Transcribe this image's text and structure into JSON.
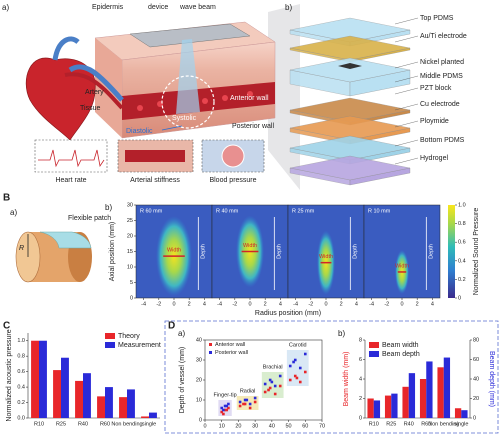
{
  "figure_A": {
    "label_a": "a)",
    "epidermis": "Epidermis",
    "device": "device",
    "wave_beam": "wave beam",
    "artery": "Artery",
    "tissue": "Tissue",
    "diastolic": "Diastolic",
    "systolic": "Systolic",
    "anterior_wall": "Anterior wall",
    "posterior_wall": "Posterior wall",
    "heart_rate": "Heart rate",
    "arterial_stiffness": "Arterial stiffness",
    "blood_pressure": "Blood pressure",
    "label_b": "b)",
    "layers": [
      "Top PDMS",
      "Au/Ti electrode",
      "Nickel planted",
      "Middle PDMS",
      "PZT block",
      "Cu electrode",
      "Ploymide",
      "Bottom PDMS",
      "Hydrogel"
    ]
  },
  "figure_B": {
    "panel_label": "B",
    "label_a": "a)",
    "flexible_patch": "Flexible patch",
    "radius_symbol": "R",
    "label_b": "b)"
  },
  "figure_C": {
    "panel_label": "C"
  },
  "figure_D": {
    "panel_label": "D",
    "label_a": "a)",
    "label_b": "b)"
  },
  "chart_data": [
    {
      "type": "heatmap",
      "panels": [
        "R 60 mm",
        "R 40 mm",
        "R 25 mm",
        "R 10 mm"
      ],
      "width_label": "Width",
      "depth_label": "Depth",
      "x_label": "Radius position (mm)",
      "y_label": "Axial position (mm)",
      "xlim": [
        -5,
        5
      ],
      "xticks": [
        -4,
        -2,
        0,
        2,
        4
      ],
      "ylim": [
        0,
        30
      ],
      "yticks": [
        0,
        5,
        10,
        15,
        20,
        25,
        30
      ],
      "colorbar_label": "Normalized Sound Pressure",
      "colorbar_lim": [
        0,
        1
      ],
      "colorbar_ticks": [
        0,
        0.2,
        0.4,
        0.6,
        0.8,
        {
          "value": 1,
          "label": "1.0"
        }
      ]
    },
    {
      "type": "bar",
      "y_label": "Normalized acoustic pressure",
      "categories": [
        "R10",
        "R25",
        "R40",
        "R60",
        "Non bending",
        "single"
      ],
      "series": [
        {
          "name": "Theory",
          "color": "#e8262a",
          "values": [
            1.0,
            0.62,
            0.48,
            0.28,
            0.27,
            0.02
          ]
        },
        {
          "name": "Measurement",
          "color": "#2a2ad8",
          "values": [
            1.0,
            0.78,
            0.58,
            0.4,
            0.37,
            0.07
          ]
        }
      ],
      "ylim": [
        0,
        1.1
      ],
      "yticks": [
        {
          "value": 0,
          "label": "0.0"
        },
        0.2,
        0.4,
        0.6,
        0.8,
        {
          "value": 1,
          "label": "1.0"
        }
      ],
      "legend": "upper right"
    },
    {
      "type": "scatter",
      "y_label": "Depth of vessel (mm)",
      "xlim": [
        0,
        70
      ],
      "xticks": [
        0,
        10,
        20,
        30,
        40,
        50,
        60,
        70
      ],
      "ylim": [
        0,
        40
      ],
      "yticks": [
        0,
        10,
        20,
        30,
        40
      ],
      "annotations": [
        "Finger-tip",
        "Radial",
        "Brachial",
        "Carotid"
      ],
      "series": [
        {
          "name": "Anterior wall",
          "color": "#e8262a",
          "x": [
            10,
            12,
            14,
            11,
            13,
            21,
            24,
            27,
            30,
            23,
            36,
            39,
            42,
            45,
            38,
            51,
            54,
            57,
            60,
            55
          ],
          "values": [
            4,
            5,
            6,
            3,
            5,
            7,
            8,
            6,
            9,
            8,
            14,
            16,
            13,
            17,
            15,
            20,
            22,
            19,
            24,
            21
          ]
        },
        {
          "name": "Posterior wall",
          "color": "#2a2ad8",
          "x": [
            10,
            12,
            14,
            11,
            13,
            21,
            24,
            27,
            30,
            25,
            36,
            39,
            42,
            45,
            40,
            51,
            54,
            57,
            60,
            53
          ],
          "values": [
            6,
            7,
            8,
            5,
            7,
            9,
            10,
            8,
            11,
            10,
            18,
            20,
            17,
            22,
            19,
            27,
            30,
            26,
            33,
            29
          ]
        }
      ]
    },
    {
      "type": "dualbar",
      "categories": [
        "R10",
        "R25",
        "R40",
        "R60",
        "Non bending",
        "single"
      ],
      "y_label": "Beam width (mm)",
      "y2_label": "Beam depth (mm)",
      "ylim": [
        0,
        8
      ],
      "yticks": [
        0,
        2,
        4,
        6,
        8
      ],
      "y2lim": [
        0,
        80
      ],
      "y2ticks": [
        0,
        20,
        40,
        60,
        80
      ],
      "legend": "upper left",
      "series": [
        {
          "name": "Beam width",
          "color": "#e8262a",
          "values": [
            2.0,
            2.3,
            3.2,
            4.0,
            5.2,
            1.0
          ]
        },
        {
          "name": "Beam depth",
          "color": "#2a2ad8",
          "axis": "y2",
          "values": [
            18,
            25,
            46,
            58,
            62,
            8
          ]
        }
      ]
    }
  ]
}
